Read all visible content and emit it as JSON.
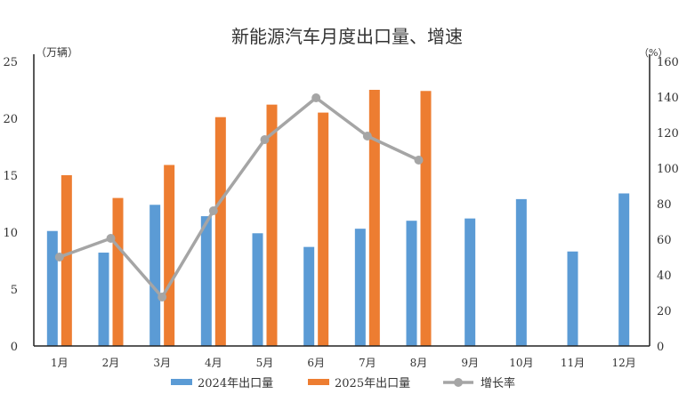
{
  "chart_data": {
    "type": "bar",
    "title": "新能源汽车月度出口量、增速",
    "ylabel_left": "（万辆）",
    "ylabel_right": "（%）",
    "categories": [
      "1月",
      "2月",
      "3月",
      "4月",
      "5月",
      "6月",
      "7月",
      "8月",
      "9月",
      "10月",
      "11月",
      "12月"
    ],
    "left_ylim": [
      0,
      25
    ],
    "left_ticks": [
      "0",
      "5",
      "10",
      "15",
      "20",
      "25"
    ],
    "right_ylim": [
      0,
      160
    ],
    "right_ticks": [
      "0",
      "20",
      "40",
      "60",
      "80",
      "100",
      "120",
      "140",
      "160"
    ],
    "series": [
      {
        "name": "2024年出口量",
        "type": "bar",
        "axis": "left",
        "color": "#5b9bd5",
        "values": [
          10.1,
          8.2,
          12.4,
          11.4,
          9.9,
          8.7,
          10.3,
          11.0,
          11.2,
          12.9,
          8.3,
          13.4
        ]
      },
      {
        "name": "2025年出口量",
        "type": "bar",
        "axis": "left",
        "color": "#ed7d31",
        "values": [
          15.0,
          13.0,
          15.9,
          20.1,
          21.2,
          20.5,
          22.5,
          22.4,
          null,
          null,
          null,
          null
        ]
      },
      {
        "name": "增长率",
        "type": "line",
        "axis": "right",
        "color": "#a5a5a5",
        "values": [
          50,
          60.5,
          27.5,
          76,
          116,
          139.5,
          118,
          104.5,
          null,
          null,
          null,
          null
        ]
      }
    ],
    "legend_position": "bottom"
  }
}
